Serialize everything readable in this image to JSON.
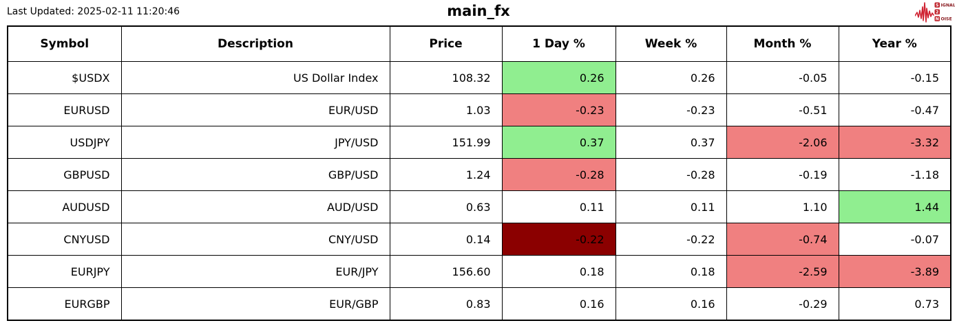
{
  "header": {
    "last_updated": "Last Updated: 2025-02-11 11:20:46",
    "title": "main_fx"
  },
  "logo": {
    "name": "Signal 2 Noise",
    "line1_boxed": "S",
    "line1_rest": "IGNAL",
    "line2_boxed": "2",
    "line3_boxed": "N",
    "line3_rest": "OISE",
    "waveform_color": "#cf2030",
    "box_color": "#bf242c",
    "text_color": "#8a1d22"
  },
  "colors": {
    "pos": "#90ee90",
    "neg": "#f08080",
    "neg_strong": "#8b0000",
    "border": "#000000",
    "background": "#ffffff"
  },
  "chart_data": {
    "type": "table",
    "title": "main_fx",
    "columns": [
      "Symbol",
      "Description",
      "Price",
      "1 Day %",
      "Week %",
      "Month %",
      "Year %"
    ],
    "column_keys": [
      "symbol",
      "description",
      "price",
      "day_pct",
      "week_pct",
      "month_pct",
      "year_pct"
    ],
    "rows": [
      [
        "$USDX",
        "US Dollar Index",
        108.32,
        0.26,
        0.26,
        -0.05,
        -0.15
      ],
      [
        "EURUSD",
        "EUR/USD",
        1.03,
        -0.23,
        -0.23,
        -0.51,
        -0.47
      ],
      [
        "USDJPY",
        "JPY/USD",
        151.99,
        0.37,
        0.37,
        -2.06,
        -3.32
      ],
      [
        "GBPUSD",
        "GBP/USD",
        1.24,
        -0.28,
        -0.28,
        -0.19,
        -1.18
      ],
      [
        "AUDUSD",
        "AUD/USD",
        0.63,
        0.11,
        0.11,
        1.1,
        1.44
      ],
      [
        "CNYUSD",
        "CNY/USD",
        0.14,
        -0.22,
        -0.22,
        -0.74,
        -0.07
      ],
      [
        "EURJPY",
        "EUR/JPY",
        156.6,
        0.18,
        0.18,
        -2.59,
        -3.89
      ],
      [
        "EURGBP",
        "EUR/GBP",
        0.83,
        0.16,
        0.16,
        -0.29,
        0.73
      ]
    ],
    "cell_bg": [
      [
        "",
        "",
        "",
        "pos",
        "",
        "",
        ""
      ],
      [
        "",
        "",
        "",
        "neg",
        "",
        "",
        ""
      ],
      [
        "",
        "",
        "",
        "pos",
        "",
        "neg",
        "neg"
      ],
      [
        "",
        "",
        "",
        "neg",
        "",
        "",
        ""
      ],
      [
        "",
        "",
        "",
        "",
        "",
        "",
        "pos"
      ],
      [
        "",
        "",
        "",
        "neg_strong",
        "",
        "neg",
        ""
      ],
      [
        "",
        "",
        "",
        "",
        "",
        "neg",
        "neg"
      ],
      [
        "",
        "",
        "",
        "",
        "",
        "",
        ""
      ]
    ],
    "number_format": "2dp",
    "grid": true,
    "legend": false
  }
}
